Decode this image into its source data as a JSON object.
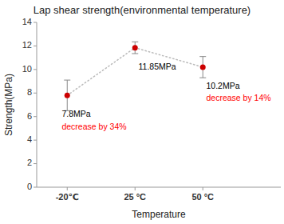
{
  "chart_data": {
    "type": "line",
    "title": "Lap shear strength(environmental temperature)",
    "xlabel": "Temperature",
    "ylabel": "Strength(MPa)",
    "categories": [
      "-20℃",
      "25 °C",
      "50 °C"
    ],
    "values": [
      7.8,
      11.85,
      10.2
    ],
    "errors": [
      1.3,
      0.5,
      0.9
    ],
    "ylim": [
      0,
      14
    ],
    "yticks": [
      0,
      2,
      4,
      6,
      8,
      10,
      12,
      14
    ],
    "color": "#cc0000",
    "marker": "circle",
    "line_style": "dotted",
    "grid": false,
    "annotations": [
      {
        "text": "7.8MPa",
        "x": -0.08,
        "y": 6.55,
        "color": "black"
      },
      {
        "text": "decrease by 34%",
        "x": -0.08,
        "y": 5.45,
        "color": "red"
      },
      {
        "text": "11.85MPa",
        "x": 1.05,
        "y": 10.55,
        "color": "black"
      },
      {
        "text": "10.2MPa",
        "x": 2.05,
        "y": 8.9,
        "color": "black"
      },
      {
        "text": "decrease by 14%",
        "x": 2.05,
        "y": 7.85,
        "color": "red"
      }
    ]
  }
}
